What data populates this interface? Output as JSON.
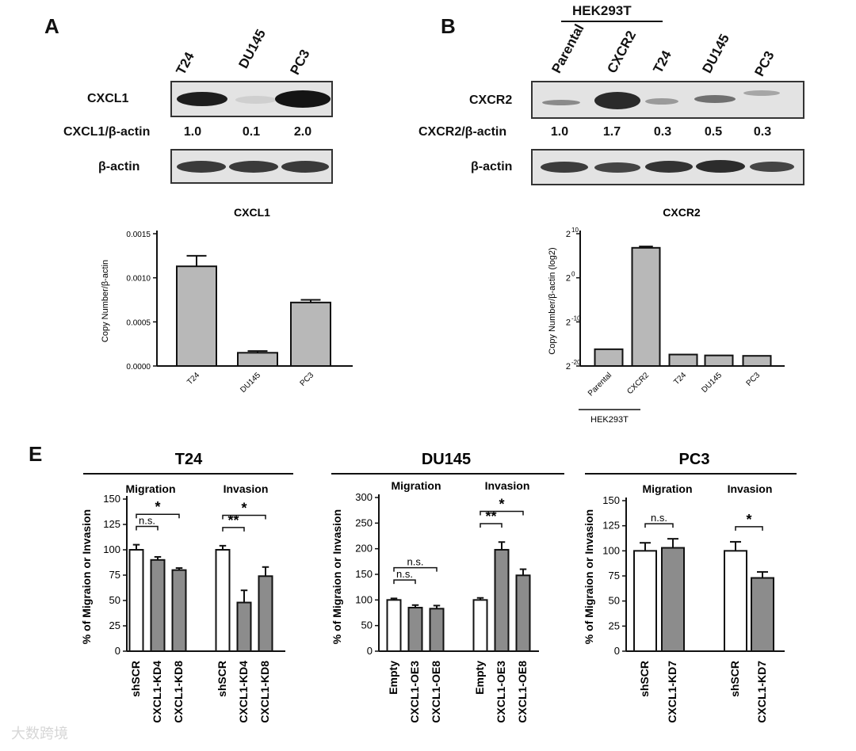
{
  "panel_a": {
    "letter": "A",
    "lanes": [
      "T24",
      "DU145",
      "PC3"
    ],
    "row_cxcl1": "CXCL1",
    "ratio_label": "CXCL1/β-actin",
    "ratios": [
      "1.0",
      "0.1",
      "2.0"
    ],
    "row_actin": "β-actin",
    "band_intensity_cxcl1": [
      1.0,
      0.1,
      2.0
    ]
  },
  "panel_b": {
    "letter": "B",
    "group_label": "HEK293T",
    "lanes": [
      "Parental",
      "CXCR2",
      "T24",
      "DU145",
      "PC3"
    ],
    "row_cxcr2": "CXCR2",
    "ratio_label": "CXCR2/β-actin",
    "ratios": [
      "1.0",
      "1.7",
      "0.3",
      "0.5",
      "0.3"
    ],
    "row_actin": "β-actin"
  },
  "chart_data": [
    {
      "type": "bar",
      "title": "CXCL1",
      "ylabel": "Copy Number/β-actin",
      "categories": [
        "T24",
        "DU145",
        "PC3"
      ],
      "values": [
        0.00113,
        0.00015,
        0.00072
      ],
      "errors": [
        0.00012,
        2e-05,
        3e-05
      ],
      "ylim": [
        0,
        0.0015
      ],
      "yticks": [
        "0.0000",
        "0.0005",
        "0.0010",
        "0.0015"
      ]
    },
    {
      "type": "bar",
      "title": "CXCR2",
      "ylabel": "Copy Number/β-actin (log2)",
      "scale": "log2",
      "categories": [
        "Parental",
        "CXCR2",
        "T24",
        "DU145",
        "PC3"
      ],
      "group_label": "HEK293T",
      "log2_values": [
        -16.2,
        6.8,
        -17.4,
        -17.6,
        -17.7
      ],
      "log2_errors": [
        0,
        0.3,
        0,
        0,
        0
      ],
      "ylim_log2": [
        -20,
        10
      ],
      "yticks_base": "2",
      "yticks_exp": [
        "-20",
        "-10",
        "0",
        "10"
      ]
    },
    {
      "type": "bar",
      "title": "T24",
      "ylabel": "% of Migraion or Invasion",
      "groups": [
        "Migration",
        "Invasion"
      ],
      "categories": [
        "shSCR",
        "CXCL1-KD4",
        "CXCL1-KD8",
        "shSCR",
        "CXCL1-KD4",
        "CXCL1-KD8"
      ],
      "values": [
        100,
        90,
        80,
        100,
        48,
        74
      ],
      "errors": [
        5,
        3,
        2,
        4,
        12,
        9
      ],
      "ylim": [
        0,
        150
      ],
      "yticks": [
        "0",
        "25",
        "50",
        "75",
        "100",
        "125",
        "150"
      ],
      "annotations": [
        [
          "n.s.",
          "*"
        ],
        [
          "**",
          "*"
        ]
      ]
    },
    {
      "type": "bar",
      "title": "DU145",
      "ylabel": "% of Migraion or Invasion",
      "groups": [
        "Migration",
        "Invasion"
      ],
      "categories": [
        "Empty",
        "CXCL1-OE3",
        "CXCL1-OE8",
        "Empty",
        "CXCL1-OE3",
        "CXCL1-OE8"
      ],
      "values": [
        100,
        85,
        83,
        100,
        198,
        148
      ],
      "errors": [
        3,
        5,
        6,
        4,
        15,
        12
      ],
      "ylim": [
        0,
        300
      ],
      "yticks": [
        "0",
        "50",
        "100",
        "150",
        "200",
        "250",
        "300"
      ],
      "annotations": [
        [
          "n.s.",
          "n.s."
        ],
        [
          "**",
          "*"
        ]
      ]
    },
    {
      "type": "bar",
      "title": "PC3",
      "ylabel": "% of Migraion or Invasion",
      "groups": [
        "Migration",
        "Invasion"
      ],
      "categories": [
        "shSCR",
        "CXCL1-KD7",
        "shSCR",
        "CXCL1-KD7"
      ],
      "values": [
        100,
        103,
        100,
        73
      ],
      "errors": [
        8,
        9,
        9,
        6
      ],
      "ylim": [
        0,
        150
      ],
      "yticks": [
        "0",
        "25",
        "50",
        "75",
        "100",
        "125",
        "150"
      ],
      "annotations": [
        [
          "n.s."
        ],
        [
          "*"
        ]
      ]
    }
  ],
  "panel_e": {
    "letter": "E"
  },
  "watermark": "大数跨境"
}
